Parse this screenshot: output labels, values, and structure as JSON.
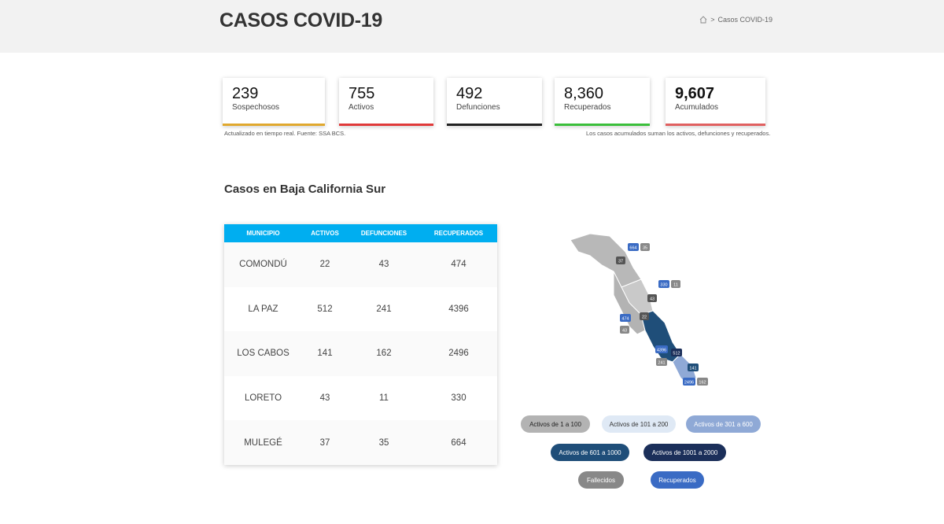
{
  "header": {
    "title": "CASOS COVID-19",
    "breadcrumb": "Casos COVID-19"
  },
  "cards": [
    {
      "value": "239",
      "label": "Sospechosos",
      "color": "#e0a82e"
    },
    {
      "value": "755",
      "label": "Activos",
      "color": "#e03a3a"
    },
    {
      "value": "492",
      "label": "Defunciones",
      "color": "#222222"
    },
    {
      "value": "8,360",
      "label": "Recuperados",
      "color": "#3bbf3b"
    },
    {
      "value": "9,607",
      "label": "Acumulados",
      "color": "#e06060"
    }
  ],
  "notes": {
    "left": "Actualizado en tiempo real. Fuente: SSA BCS.",
    "right": "Los casos acumulados suman los activos, defunciones y recuperados."
  },
  "section_title": "Casos en Baja California Sur",
  "table": {
    "headers": [
      "MUNICIPIO",
      "ACTIVOS",
      "DEFUNCIONES",
      "RECUPERADOS"
    ],
    "rows": [
      [
        "COMONDÚ",
        "22",
        "43",
        "474"
      ],
      [
        "LA PAZ",
        "512",
        "241",
        "4396"
      ],
      [
        "LOS CABOS",
        "141",
        "162",
        "2496"
      ],
      [
        "LORETO",
        "43",
        "11",
        "330"
      ],
      [
        "MULEGÉ",
        "37",
        "35",
        "664"
      ]
    ]
  },
  "map": {
    "badges": [
      "664",
      "35",
      "37",
      "330",
      "11",
      "43",
      "474",
      "22",
      "43",
      "4396",
      "512",
      "241",
      "141",
      "2496",
      "162"
    ]
  },
  "legend": [
    {
      "label": "Activos de 1 a 100",
      "bg": "#b3b3b3",
      "fg": "#222222"
    },
    {
      "label": "Activos de 101 a 200",
      "bg": "#dfe9f5",
      "fg": "#333333"
    },
    {
      "label": "Activos de 301 a 600",
      "bg": "#8fa9d6",
      "fg": "#ffffff"
    },
    {
      "label": "Activos de 601 a 1000",
      "bg": "#1f4e79",
      "fg": "#ffffff"
    },
    {
      "label": "Activos de 1001 a 2000",
      "bg": "#1b2f5a",
      "fg": "#ffffff"
    },
    {
      "label": "Fallecidos",
      "bg": "#888888",
      "fg": "#ffffff"
    },
    {
      "label": "Recuperados",
      "bg": "#3a6bc4",
      "fg": "#ffffff"
    }
  ]
}
